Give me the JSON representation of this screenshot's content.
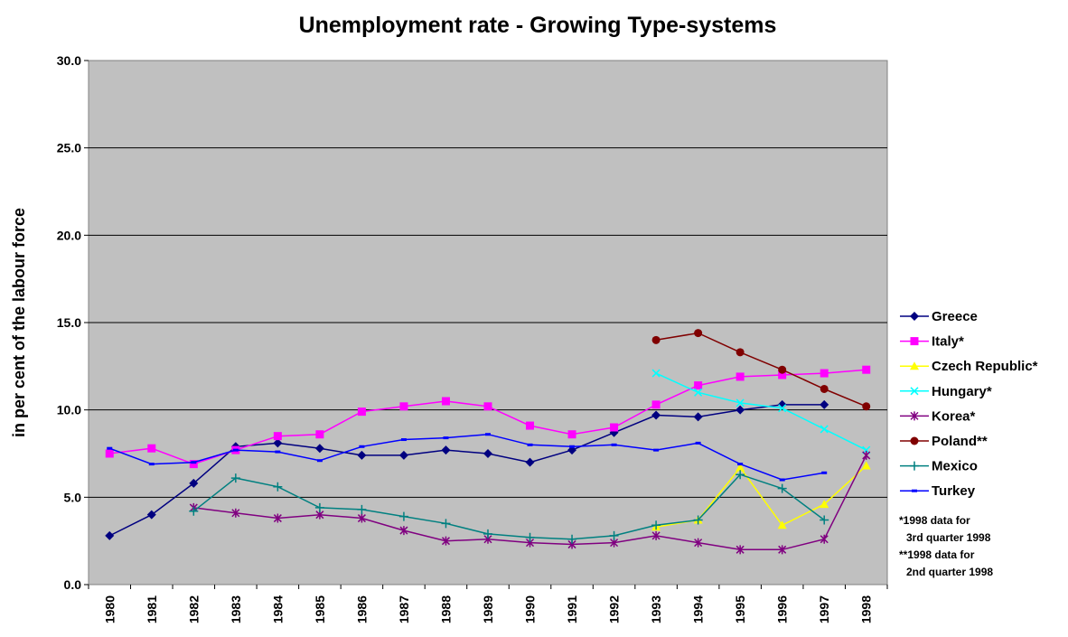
{
  "chart_data": {
    "type": "line",
    "title": "Unemployment rate - Growing Type-systems",
    "ylabel": "in per cent of the labour force",
    "xlabel": "",
    "ylim": [
      0,
      30
    ],
    "yticks": [
      "0.0",
      "5.0",
      "10.0",
      "15.0",
      "20.0",
      "25.0",
      "30.0"
    ],
    "categories": [
      "1980",
      "1981",
      "1982",
      "1983",
      "1984",
      "1985",
      "1986",
      "1987",
      "1988",
      "1989",
      "1990",
      "1991",
      "1992",
      "1993",
      "1994",
      "1995",
      "1996",
      "1997",
      "1998"
    ],
    "grid": "horizontal",
    "legend_position": "right",
    "series": [
      {
        "name": "Greece",
        "color": "#000080",
        "marker": "diamond",
        "values": [
          2.8,
          4.0,
          5.8,
          7.9,
          8.1,
          7.8,
          7.4,
          7.4,
          7.7,
          7.5,
          7.0,
          7.7,
          8.7,
          9.7,
          9.6,
          10.0,
          10.3,
          10.3,
          null
        ]
      },
      {
        "name": "Italy*",
        "color": "#FF00FF",
        "marker": "square",
        "values": [
          7.5,
          7.8,
          6.9,
          7.7,
          8.5,
          8.6,
          9.9,
          10.2,
          10.5,
          10.2,
          9.1,
          8.6,
          9.0,
          10.3,
          11.4,
          11.9,
          12.0,
          12.1,
          12.3
        ]
      },
      {
        "name": "Czech Republic*",
        "color": "#FFFF00",
        "marker": "triangle",
        "values": [
          null,
          null,
          null,
          null,
          null,
          null,
          null,
          null,
          null,
          null,
          null,
          null,
          null,
          3.3,
          3.7,
          6.7,
          3.4,
          4.6,
          6.8
        ]
      },
      {
        "name": "Hungary*",
        "color": "#00FFFF",
        "marker": "x",
        "values": [
          null,
          null,
          null,
          null,
          null,
          null,
          null,
          null,
          null,
          null,
          null,
          null,
          null,
          12.1,
          11.0,
          10.4,
          10.1,
          8.9,
          7.7
        ]
      },
      {
        "name": "Korea*",
        "color": "#800080",
        "marker": "star",
        "values": [
          null,
          null,
          4.4,
          4.1,
          3.8,
          4.0,
          3.8,
          3.1,
          2.5,
          2.6,
          2.4,
          2.3,
          2.4,
          2.8,
          2.4,
          2.0,
          2.0,
          2.6,
          7.4
        ]
      },
      {
        "name": "Poland**",
        "color": "#800000",
        "marker": "circle",
        "values": [
          null,
          null,
          null,
          null,
          null,
          null,
          null,
          null,
          null,
          null,
          null,
          null,
          null,
          14.0,
          14.4,
          13.3,
          12.3,
          11.2,
          10.2
        ]
      },
      {
        "name": "Mexico",
        "color": "#008080",
        "marker": "plus",
        "values": [
          null,
          null,
          4.2,
          6.1,
          5.6,
          4.4,
          4.3,
          3.9,
          3.5,
          2.9,
          2.7,
          2.6,
          2.8,
          3.4,
          3.7,
          6.3,
          5.5,
          3.7,
          null
        ]
      },
      {
        "name": "Turkey",
        "color": "#0000FF",
        "marker": "dash",
        "values": [
          7.8,
          6.9,
          7.0,
          7.7,
          7.6,
          7.1,
          7.9,
          8.3,
          8.4,
          8.6,
          8.0,
          7.9,
          8.0,
          7.7,
          8.1,
          6.9,
          6.0,
          6.4,
          null
        ]
      }
    ],
    "notes": [
      "*1998 data for",
      "3rd quarter 1998",
      "**1998 data for",
      "2nd quarter 1998"
    ],
    "plot_background": "#C0C0C0"
  }
}
